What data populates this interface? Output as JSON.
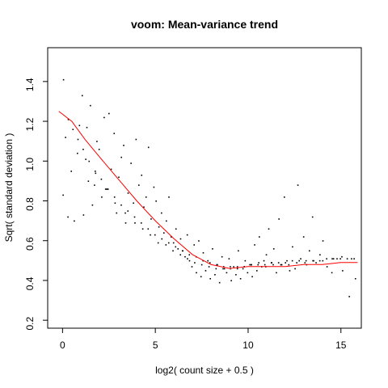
{
  "chart_data": {
    "type": "scatter",
    "title": "voom: Mean-variance trend",
    "xlabel": "log2( count size + 0.5 )",
    "ylabel": "Sqrt( standard deviation )",
    "xlim": [
      -0.8,
      16.1
    ],
    "ylim": [
      0.16,
      1.57
    ],
    "x_ticks": [
      0,
      5,
      10,
      15
    ],
    "y_ticks": [
      0.2,
      0.4,
      0.6,
      0.8,
      1.0,
      1.2,
      1.4
    ],
    "x_tick_labels": [
      "0",
      "5",
      "10",
      "15"
    ],
    "y_tick_labels": [
      "0.2",
      "0.4",
      "0.6",
      "0.8",
      "1.0",
      "1.2",
      "1.4"
    ],
    "grid": false,
    "series": [
      {
        "type": "scatter",
        "color": "#000000",
        "x": [
          0.02,
          0.04,
          0.15,
          0.28,
          0.46,
          0.62,
          0.79,
          0.9,
          1.05,
          1.12,
          1.3,
          1.38,
          1.49,
          1.6,
          1.71,
          1.84,
          1.96,
          2.1,
          2.23,
          2.38,
          2.49,
          2.61,
          2.77,
          2.9,
          3.02,
          3.16,
          3.28,
          3.39,
          3.52,
          3.68,
          3.81,
          3.95,
          4.1,
          4.25,
          4.37,
          4.49,
          4.62,
          4.76,
          4.91,
          5.03,
          5.18,
          5.32,
          5.45,
          5.58,
          5.72,
          5.84,
          5.97,
          6.1,
          6.21,
          6.35,
          6.47,
          6.59,
          6.71,
          6.83,
          6.96,
          7.08,
          7.2,
          7.33,
          7.45,
          7.57,
          7.7,
          7.82,
          7.95,
          8.07,
          8.2,
          8.33,
          8.45,
          8.58,
          8.71,
          8.83,
          8.96,
          9.08,
          9.21,
          9.33,
          9.46,
          9.58,
          9.71,
          9.83,
          9.96,
          10.08,
          10.21,
          10.34,
          10.46,
          10.59,
          10.72,
          10.84,
          10.97,
          11.1,
          11.24,
          11.37,
          11.51,
          11.65,
          11.8,
          11.94,
          12.08,
          12.23,
          12.38,
          12.52,
          12.67,
          12.82,
          12.98,
          13.14,
          13.29,
          13.46,
          13.65,
          13.86,
          14.02,
          14.24,
          14.5,
          14.78,
          15.08,
          15.44,
          15.77,
          1.24,
          1.77,
          2.31,
          2.82,
          3.37,
          3.89,
          4.31,
          4.72,
          5.14,
          5.56,
          5.94,
          6.34,
          6.72,
          7.11,
          7.49,
          7.88,
          8.26,
          8.64,
          9.03,
          9.41,
          9.78,
          10.17,
          10.56,
          10.94,
          11.34,
          11.75,
          12.18,
          12.61,
          13.05,
          13.52,
          14.01,
          14.52,
          15.04,
          15.56,
          0.3,
          0.55,
          0.82,
          1.1,
          1.42,
          1.75,
          2.08,
          2.44,
          2.79,
          3.15,
          3.51,
          3.87,
          4.23,
          4.6,
          4.97,
          5.34,
          5.71,
          6.08,
          6.45,
          6.82,
          7.19,
          7.56,
          7.93,
          8.3,
          8.67,
          9.04,
          9.41,
          9.78,
          10.15,
          10.52,
          10.89,
          11.26,
          11.63,
          12.0,
          12.37,
          12.74,
          13.11,
          13.48,
          13.85,
          14.22,
          14.59,
          14.96,
          15.33,
          15.7
        ],
        "y": [
          0.83,
          1.41,
          1.12,
          0.72,
          0.95,
          0.7,
          1.04,
          1.18,
          1.33,
          0.73,
          1.17,
          0.9,
          1.28,
          0.78,
          0.88,
          1.1,
          1.06,
          0.82,
          1.22,
          0.86,
          1.24,
          0.96,
          1.14,
          0.74,
          0.92,
          1.02,
          1.08,
          0.69,
          0.84,
          0.99,
          0.79,
          1.11,
          0.88,
          0.93,
          0.77,
          0.82,
          1.07,
          0.71,
          0.87,
          0.8,
          0.67,
          0.74,
          0.64,
          0.7,
          0.82,
          0.62,
          0.59,
          0.66,
          0.56,
          0.61,
          0.55,
          0.52,
          0.63,
          0.5,
          0.47,
          0.58,
          0.44,
          0.6,
          0.42,
          0.54,
          0.45,
          0.5,
          0.41,
          0.56,
          0.43,
          0.48,
          0.39,
          0.52,
          0.46,
          0.44,
          0.51,
          0.4,
          0.47,
          0.43,
          0.55,
          0.41,
          0.46,
          0.5,
          0.44,
          0.48,
          0.42,
          0.58,
          0.45,
          0.62,
          0.47,
          0.5,
          0.53,
          0.66,
          0.49,
          0.56,
          0.44,
          0.71,
          0.48,
          0.82,
          0.5,
          0.45,
          0.57,
          0.46,
          0.88,
          0.51,
          0.62,
          0.48,
          0.55,
          0.72,
          0.49,
          0.53,
          0.6,
          0.47,
          0.44,
          0.51,
          0.45,
          0.32,
          0.41,
          1.01,
          0.94,
          0.86,
          0.79,
          0.74,
          0.69,
          0.66,
          0.63,
          0.59,
          0.58,
          0.55,
          0.53,
          0.51,
          0.49,
          0.48,
          0.47,
          0.46,
          0.46,
          0.47,
          0.46,
          0.47,
          0.48,
          0.49,
          0.47,
          0.48,
          0.48,
          0.48,
          0.49,
          0.49,
          0.5,
          0.5,
          0.51,
          0.52,
          0.51,
          1.21,
          1.16,
          1.11,
          1.06,
          1.0,
          0.95,
          0.91,
          0.86,
          0.82,
          0.78,
          0.75,
          0.72,
          0.69,
          0.66,
          0.63,
          0.61,
          0.59,
          0.57,
          0.55,
          0.53,
          0.52,
          0.5,
          0.49,
          0.48,
          0.47,
          0.46,
          0.47,
          0.47,
          0.48,
          0.48,
          0.48,
          0.49,
          0.49,
          0.49,
          0.5,
          0.5,
          0.5,
          0.5,
          0.5,
          0.51,
          0.51,
          0.51,
          0.51,
          0.51
        ]
      },
      {
        "type": "line",
        "color": "#ff0000",
        "x": [
          -0.2,
          0.5,
          1.2,
          2.0,
          3.0,
          4.0,
          5.0,
          6.0,
          7.0,
          8.0,
          9.0,
          10.0,
          11.0,
          12.0,
          13.0,
          14.0,
          15.0,
          15.9
        ],
        "y": [
          1.25,
          1.2,
          1.11,
          1.02,
          0.91,
          0.8,
          0.7,
          0.61,
          0.53,
          0.48,
          0.46,
          0.47,
          0.47,
          0.47,
          0.48,
          0.48,
          0.49,
          0.49
        ]
      }
    ]
  }
}
